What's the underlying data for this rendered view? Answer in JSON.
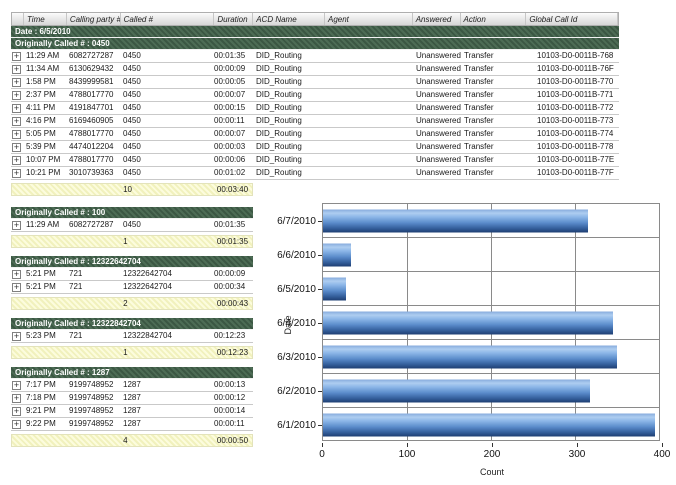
{
  "table": {
    "expander_symbol": "+",
    "columns": [
      "",
      "Time",
      "Calling party #",
      "Called #",
      "Duration",
      "ACD Name",
      "Agent",
      "Answered",
      "Action",
      "Global Call Id"
    ],
    "date_header": "Date : 6/5/2010",
    "main_group": {
      "header": "Originally Called # : 0450",
      "rows": [
        {
          "time": "11:29 AM",
          "calling_party": "6082727287",
          "called": "0450",
          "duration": "00:01:35",
          "acd_name": "DID_Routing",
          "agent": "",
          "answered": "Unanswered",
          "action": "Transfer",
          "global_call_id": "10103-D0-0011B-768"
        },
        {
          "time": "11:34 AM",
          "calling_party": "6130629432",
          "called": "0450",
          "duration": "00:00:09",
          "acd_name": "DID_Routing",
          "agent": "",
          "answered": "Unanswered",
          "action": "Transfer",
          "global_call_id": "10103-D0-0011B-76F"
        },
        {
          "time": "1:58 PM",
          "calling_party": "8439999581",
          "called": "0450",
          "duration": "00:00:05",
          "acd_name": "DID_Routing",
          "agent": "",
          "answered": "Unanswered",
          "action": "Transfer",
          "global_call_id": "10103-D0-0011B-770"
        },
        {
          "time": "2:37 PM",
          "calling_party": "4788017770",
          "called": "0450",
          "duration": "00:00:07",
          "acd_name": "DID_Routing",
          "agent": "",
          "answered": "Unanswered",
          "action": "Transfer",
          "global_call_id": "10103-D0-0011B-771"
        },
        {
          "time": "4:11 PM",
          "calling_party": "4191847701",
          "called": "0450",
          "duration": "00:00:15",
          "acd_name": "DID_Routing",
          "agent": "",
          "answered": "Unanswered",
          "action": "Transfer",
          "global_call_id": "10103-D0-0011B-772"
        },
        {
          "time": "4:16 PM",
          "calling_party": "6169460905",
          "called": "0450",
          "duration": "00:00:11",
          "acd_name": "DID_Routing",
          "agent": "",
          "answered": "Unanswered",
          "action": "Transfer",
          "global_call_id": "10103-D0-0011B-773"
        },
        {
          "time": "5:05 PM",
          "calling_party": "4788017770",
          "called": "0450",
          "duration": "00:00:07",
          "acd_name": "DID_Routing",
          "agent": "",
          "answered": "Unanswered",
          "action": "Transfer",
          "global_call_id": "10103-D0-0011B-774"
        },
        {
          "time": "5:39 PM",
          "calling_party": "4474012204",
          "called": "0450",
          "duration": "00:00:03",
          "acd_name": "DID_Routing",
          "agent": "",
          "answered": "Unanswered",
          "action": "Transfer",
          "global_call_id": "10103-D0-0011B-778"
        },
        {
          "time": "10:07 PM",
          "calling_party": "4788017770",
          "called": "0450",
          "duration": "00:00:06",
          "acd_name": "DID_Routing",
          "agent": "",
          "answered": "Unanswered",
          "action": "Transfer",
          "global_call_id": "10103-D0-0011B-77E"
        },
        {
          "time": "10:21 PM",
          "calling_party": "3010739363",
          "called": "0450",
          "duration": "00:01:02",
          "acd_name": "DID_Routing",
          "agent": "",
          "answered": "Unanswered",
          "action": "Transfer",
          "global_call_id": "10103-D0-0011B-77F"
        }
      ],
      "summary": {
        "count": "10",
        "duration": "00:03:40"
      }
    },
    "sub_groups": [
      {
        "header": "Originally Called # : 100",
        "rows": [
          {
            "time": "11:29 AM",
            "calling_party": "6082727287",
            "called": "0450",
            "duration": "00:01:35"
          }
        ],
        "summary": {
          "count": "1",
          "duration": "00:01:35"
        }
      },
      {
        "header": "Originally Called # : 12322642704",
        "rows": [
          {
            "time": "5:21 PM",
            "calling_party": "721",
            "called": "12322642704",
            "duration": "00:00:09"
          },
          {
            "time": "5:21 PM",
            "calling_party": "721",
            "called": "12322642704",
            "duration": "00:00:34"
          }
        ],
        "summary": {
          "count": "2",
          "duration": "00:00:43"
        }
      },
      {
        "header": "Originally Called # : 12322842704",
        "rows": [
          {
            "time": "5:23 PM",
            "calling_party": "721",
            "called": "12322842704",
            "duration": "00:12:23"
          }
        ],
        "summary": {
          "count": "1",
          "duration": "00:12:23"
        }
      },
      {
        "header": "Originally Called # : 1287",
        "rows": [
          {
            "time": "7:17 PM",
            "calling_party": "9199748952",
            "called": "1287",
            "duration": "00:00:13"
          },
          {
            "time": "7:18 PM",
            "calling_party": "9199748952",
            "called": "1287",
            "duration": "00:00:12"
          },
          {
            "time": "9:21 PM",
            "calling_party": "9199748952",
            "called": "1287",
            "duration": "00:00:14"
          },
          {
            "time": "9:22 PM",
            "calling_party": "9199748952",
            "called": "1287",
            "duration": "00:00:11"
          }
        ],
        "summary": {
          "count": "4",
          "duration": "00:00:50"
        }
      }
    ]
  },
  "chart_data": {
    "type": "bar",
    "orientation": "horizontal",
    "categories": [
      "6/7/2010",
      "6/6/2010",
      "6/5/2010",
      "6/4/2010",
      "6/3/2010",
      "6/2/2010",
      "6/1/2010"
    ],
    "values": [
      315,
      33,
      27,
      345,
      350,
      318,
      395
    ],
    "title": "",
    "xlabel": "Count",
    "ylabel": "Date",
    "xlim": [
      0,
      400
    ],
    "xticks": [
      0,
      100,
      200,
      300,
      400
    ],
    "grid": true,
    "legend": "none"
  },
  "colors": {
    "group_header_bg": "#3B5743",
    "group_header_text": "#FFFFFF",
    "summary_row_bg": "#F8F8CE",
    "column_header_bg": "#E4E4E4",
    "bar_blue_light": "#AECDF0",
    "bar_blue_dark": "#1E3E72",
    "grid_line": "#8A8A8A"
  }
}
